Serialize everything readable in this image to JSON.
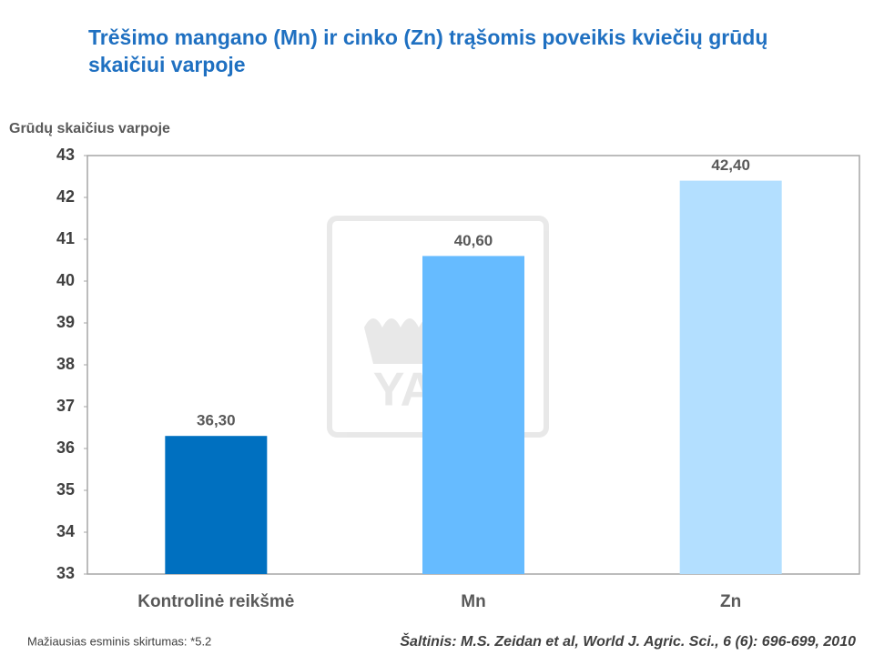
{
  "chart_data": {
    "type": "bar",
    "title": "Trěšimo mangano (Mn) ir cinko (Zn) trąšomis poveikis kviečių grūdų skaičiui varpoje",
    "y_label": "Grūdų skaičius varpoje",
    "categories": [
      "Kontrolinė reikšmė",
      "Mn",
      "Zn"
    ],
    "values": [
      36.3,
      40.6,
      42.4
    ],
    "value_labels": [
      "36,30",
      "40,60",
      "42,40"
    ],
    "colors": [
      "#0070c0",
      "#66bbff",
      "#b3dfff"
    ],
    "ylim": [
      33,
      43
    ],
    "yticks": [
      33,
      34,
      35,
      36,
      37,
      38,
      39,
      40,
      41,
      42,
      43
    ],
    "grid": false,
    "watermark": "YARA",
    "footnote": "Mažiausias esminis skirtumas: *5.2",
    "source": "Šaltinis: M.S. Zeidan et al, World J. Agric. Sci., 6 (6): 696-699, 2010"
  }
}
